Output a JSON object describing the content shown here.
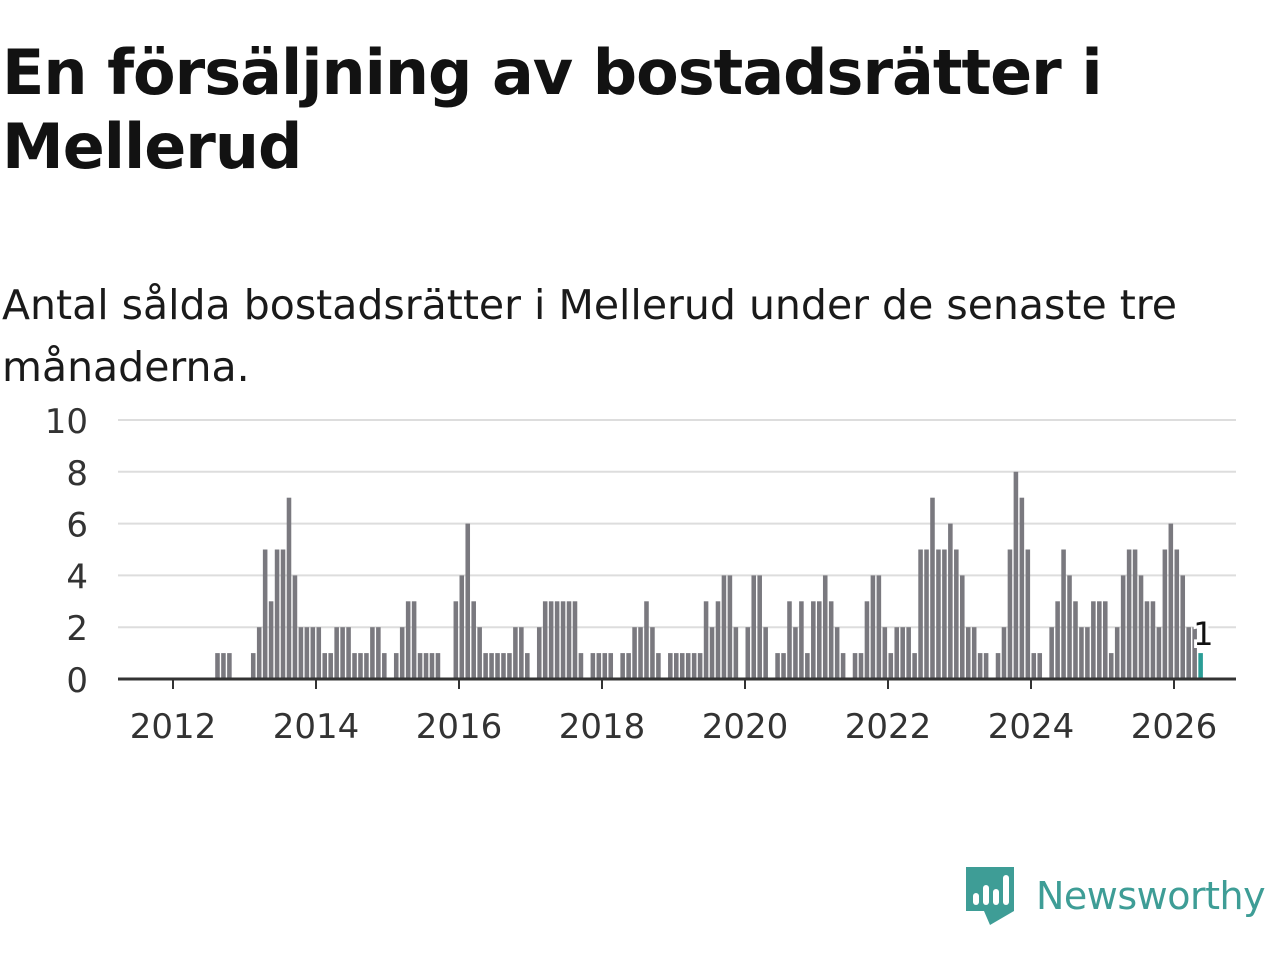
{
  "title": "En försäljning av bostadsrätter i Mellerud",
  "subtitle": "Antal sålda bostadsrätter i Mellerud under de senaste tre månaderna.",
  "brand": {
    "name": "Newsworthy",
    "color": "#3e9d96",
    "icon": "newsworthy-logo-icon"
  },
  "colors": {
    "bar": "#7a797f",
    "highlight": "#2a9d96",
    "grid": "#dddddd",
    "axis": "#333333"
  },
  "chart_data": {
    "type": "bar",
    "title": "Antal sålda bostadsrätter i Mellerud under de senaste tre månaderna.",
    "xlabel": "",
    "ylabel": "",
    "start_year": 2011,
    "start_month": 2,
    "ylim": [
      0,
      10
    ],
    "yticks": [
      0,
      2,
      4,
      6,
      8,
      10
    ],
    "xticks": [
      2012,
      2014,
      2016,
      2018,
      2020,
      2022,
      2024,
      2026
    ],
    "grid": true,
    "highlight_label": "1",
    "values": [
      0,
      0,
      0,
      0,
      0,
      0,
      0,
      0,
      0,
      0,
      0,
      0,
      0,
      0,
      0,
      0,
      0,
      0,
      1,
      1,
      1,
      0,
      0,
      0,
      1,
      2,
      5,
      3,
      5,
      5,
      7,
      4,
      2,
      2,
      2,
      2,
      1,
      1,
      2,
      2,
      2,
      1,
      1,
      1,
      2,
      2,
      1,
      0,
      1,
      2,
      3,
      3,
      1,
      1,
      1,
      1,
      0,
      0,
      3,
      4,
      6,
      3,
      2,
      1,
      1,
      1,
      1,
      1,
      2,
      2,
      1,
      0,
      2,
      3,
      3,
      3,
      3,
      3,
      3,
      1,
      0,
      1,
      1,
      1,
      1,
      0,
      1,
      1,
      2,
      2,
      3,
      2,
      1,
      0,
      1,
      1,
      1,
      1,
      1,
      1,
      3,
      2,
      3,
      4,
      4,
      2,
      0,
      2,
      4,
      4,
      2,
      0,
      1,
      1,
      3,
      2,
      3,
      1,
      3,
      3,
      4,
      3,
      2,
      1,
      0,
      1,
      1,
      3,
      4,
      4,
      2,
      1,
      2,
      2,
      2,
      1,
      5,
      5,
      7,
      5,
      5,
      6,
      5,
      4,
      2,
      2,
      1,
      1,
      0,
      1,
      2,
      5,
      8,
      7,
      5,
      1,
      1,
      0,
      2,
      3,
      5,
      4,
      3,
      2,
      2,
      3,
      3,
      3,
      1,
      2,
      4,
      5,
      5,
      4,
      3,
      3,
      2,
      5,
      6,
      5,
      4,
      2,
      2,
      1
    ]
  }
}
